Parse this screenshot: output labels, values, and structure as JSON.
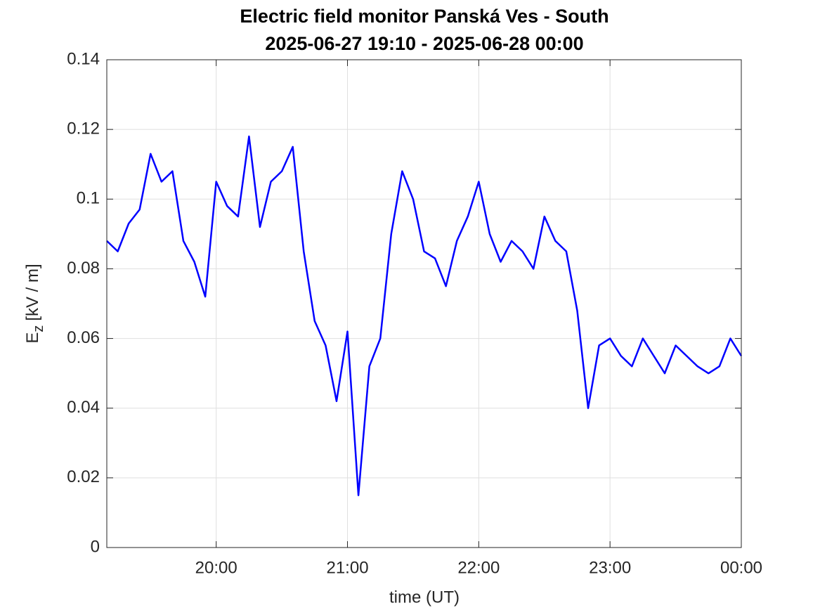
{
  "chart_data": {
    "type": "line",
    "title": "Electric field monitor Panská Ves - South",
    "subtitle": "2025-06-27 19:10 - 2025-06-28 00:00",
    "xlabel": "time (UT)",
    "ylabel": "E",
    "ylabel_sub": "z",
    "ylabel_unit": "[kV / m]",
    "x": [
      "19:10",
      "19:15",
      "19:20",
      "19:25",
      "19:30",
      "19:35",
      "19:40",
      "19:45",
      "19:50",
      "19:55",
      "20:00",
      "20:05",
      "20:10",
      "20:15",
      "20:20",
      "20:25",
      "20:30",
      "20:35",
      "20:40",
      "20:45",
      "20:50",
      "20:55",
      "21:00",
      "21:05",
      "21:10",
      "21:15",
      "21:20",
      "21:25",
      "21:30",
      "21:35",
      "21:40",
      "21:45",
      "21:50",
      "21:55",
      "22:00",
      "22:05",
      "22:10",
      "22:15",
      "22:20",
      "22:25",
      "22:30",
      "22:35",
      "22:40",
      "22:45",
      "22:50",
      "22:55",
      "23:00",
      "23:05",
      "23:10",
      "23:15",
      "23:20",
      "23:25",
      "23:30",
      "23:35",
      "23:40",
      "23:45",
      "23:50",
      "23:55",
      "00:00"
    ],
    "values": [
      0.088,
      0.085,
      0.093,
      0.097,
      0.113,
      0.105,
      0.108,
      0.088,
      0.082,
      0.072,
      0.105,
      0.098,
      0.095,
      0.118,
      0.092,
      0.105,
      0.108,
      0.115,
      0.085,
      0.065,
      0.058,
      0.042,
      0.062,
      0.015,
      0.052,
      0.06,
      0.09,
      0.108,
      0.1,
      0.085,
      0.083,
      0.075,
      0.088,
      0.095,
      0.105,
      0.09,
      0.082,
      0.088,
      0.085,
      0.08,
      0.095,
      0.088,
      0.085,
      0.068,
      0.04,
      0.058,
      0.06,
      0.055,
      0.052,
      0.06,
      0.055,
      0.05,
      0.058,
      0.055,
      0.052,
      0.05,
      0.052,
      0.06,
      0.055
    ],
    "color": "#0000ff",
    "xlim": [
      "19:10",
      "00:00"
    ],
    "xticks": [
      "20:00",
      "21:00",
      "22:00",
      "23:00",
      "00:00"
    ],
    "ylim": [
      0,
      0.14
    ],
    "yticks": [
      0,
      0.02,
      0.04,
      0.06,
      0.08,
      0.1,
      0.12,
      0.14
    ],
    "grid": true
  }
}
